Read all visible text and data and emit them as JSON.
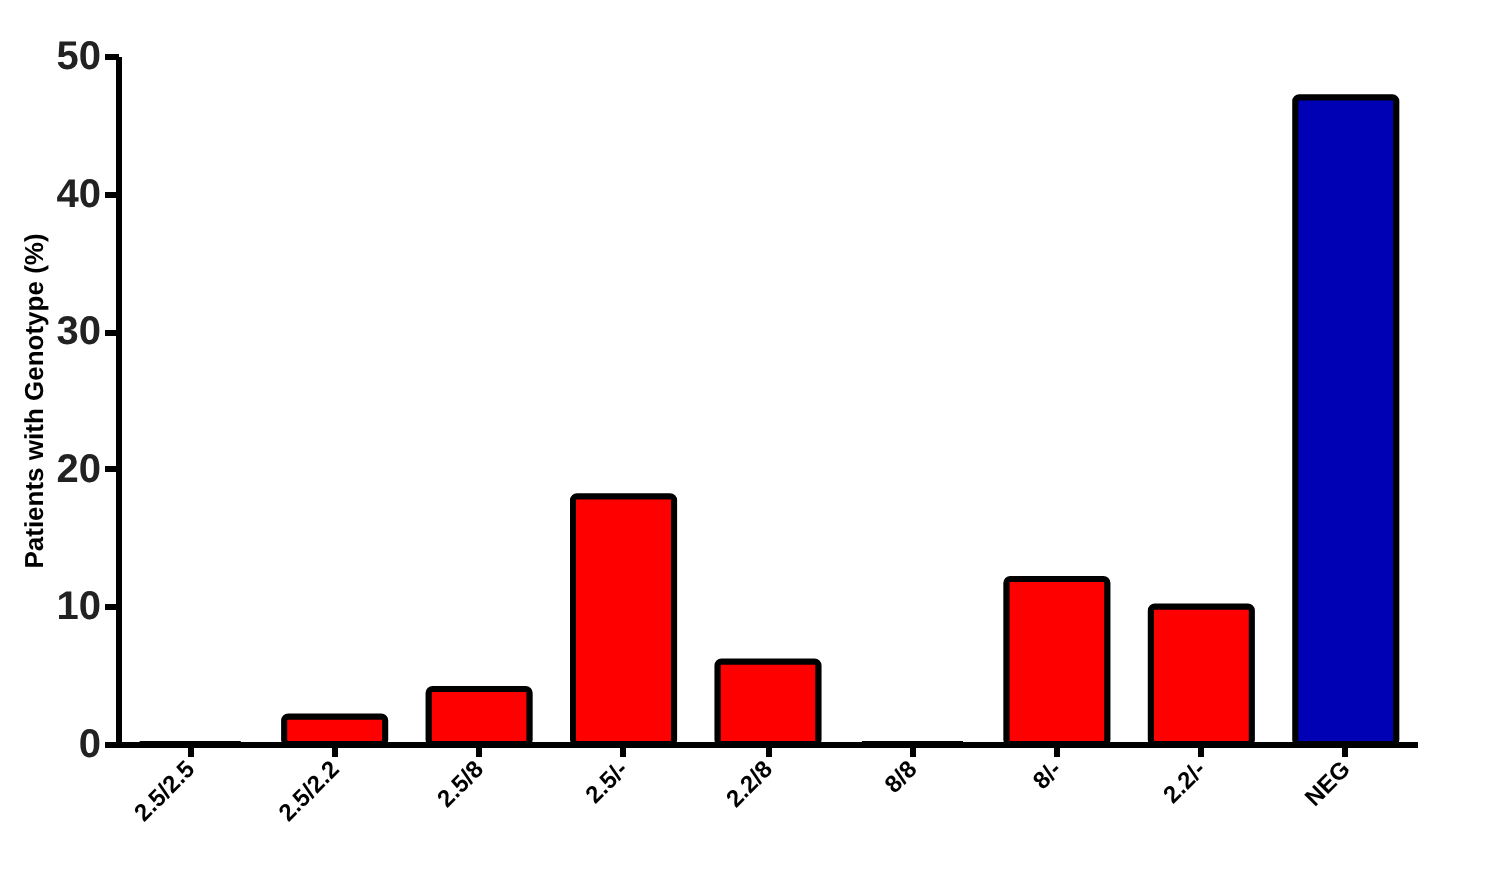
{
  "chart_data": {
    "type": "bar",
    "ylabel": "Patients with Genotype (%)",
    "categories": [
      "2.5/2.5",
      "2.5/2.2",
      "2.5/8",
      "2.5/-",
      "2.2/8",
      "8/8",
      "8/-",
      "2.2/-",
      "NEG"
    ],
    "values": [
      0,
      2,
      4,
      18,
      6,
      0,
      12,
      10,
      47
    ],
    "colors": [
      "#ff0000",
      "#ff0000",
      "#ff0000",
      "#ff0000",
      "#ff0000",
      "#ff0000",
      "#ff0000",
      "#ff0000",
      "#0000b4"
    ],
    "ylim": [
      0,
      50
    ],
    "yticks": [
      0,
      10,
      20,
      30,
      40,
      50
    ],
    "grid": false
  }
}
